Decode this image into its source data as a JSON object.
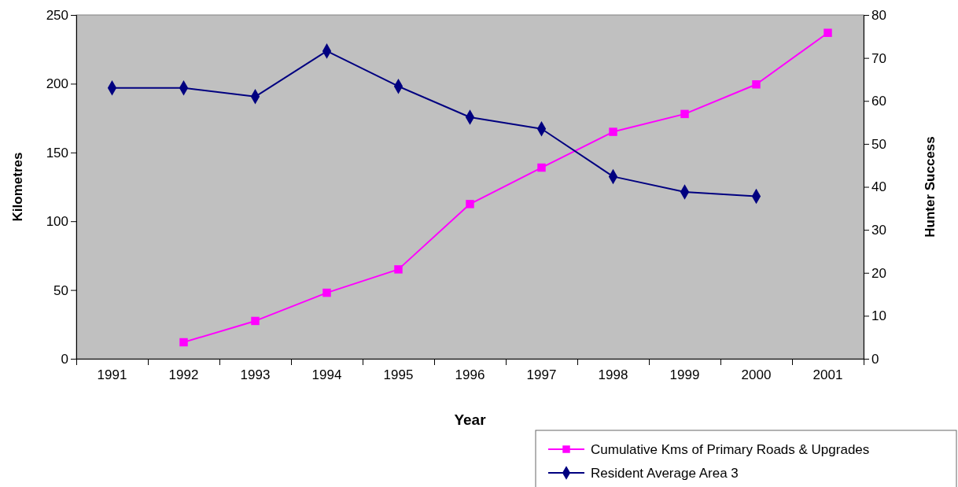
{
  "chart_data": {
    "type": "line",
    "xlabel": "Year",
    "ylabel": "Kilometres",
    "y2label": "Hunter Success",
    "categories": [
      "1991",
      "1992",
      "1993",
      "1994",
      "1995",
      "1996",
      "1997",
      "1998",
      "1999",
      "2000",
      "2001"
    ],
    "series": [
      {
        "name": "Cumulative Kms of Primary Roads & Upgrades",
        "color": "#ff00ff",
        "marker": "square",
        "values": [
          null,
          12,
          27.5,
          48,
          65,
          112.5,
          139,
          165,
          178,
          199.5,
          237
        ]
      },
      {
        "name": "Resident Average Area 3",
        "color": "#000080",
        "marker": "diamond",
        "axis": "y2",
        "values": [
          63,
          63,
          61,
          71.6,
          63.4,
          56.2,
          53.5,
          42.4,
          38.8,
          37.8,
          null
        ]
      }
    ],
    "ylim": [
      0,
      250
    ],
    "yticks": [
      0,
      50,
      100,
      150,
      200,
      250
    ],
    "y2lim": [
      0,
      80
    ],
    "y2ticks": [
      0,
      10,
      20,
      30,
      40,
      50,
      60,
      70,
      80
    ],
    "grid": false,
    "legend": "bottom right"
  }
}
